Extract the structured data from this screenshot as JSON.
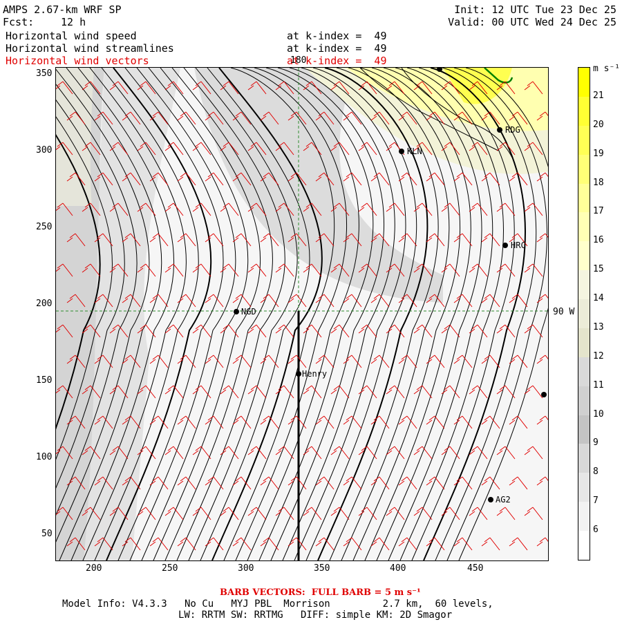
{
  "header": {
    "model_title": "AMPS 2.67-km WRF SP",
    "fcst_label": "Fcst:",
    "fcst_value": "12 h",
    "init": "Init: 12 UTC Tue 23 Dec 25",
    "valid": "Valid: 00 UTC Wed 24 Dec 25"
  },
  "fields": [
    {
      "name": "Horizontal wind speed",
      "level": "at k-index =  49",
      "color": "#000000"
    },
    {
      "name": "Horizontal wind streamlines",
      "level": "at k-index =  49",
      "color": "#000000"
    },
    {
      "name": "Horizontal wind vectors",
      "level": "at k-index =  49",
      "color": "#e00000"
    }
  ],
  "map": {
    "x_ticks": [
      "200",
      "250",
      "300",
      "350",
      "400",
      "450"
    ],
    "y_ticks": [
      "350",
      "300",
      "250",
      "200",
      "150",
      "100",
      "50"
    ],
    "top_grid_label": "180",
    "right_grid_label": "90 W",
    "stations": [
      {
        "label": "RDG"
      },
      {
        "label": "KLN"
      },
      {
        "label": "HRC"
      },
      {
        "label": "NGD"
      },
      {
        "label": "Henry"
      },
      {
        "label": "AG2"
      }
    ]
  },
  "colorbar": {
    "unit": "m s⁻¹",
    "levels": [
      "21",
      "20",
      "19",
      "18",
      "17",
      "16",
      "15",
      "14",
      "13",
      "12",
      "11",
      "10",
      "9",
      "8",
      "7",
      "6"
    ],
    "colors": [
      "#ffff00",
      "#ffff33",
      "#ffff55",
      "#ffff77",
      "#ffff99",
      "#ffffb5",
      "#ffffcc",
      "#f5f5e0",
      "#ececd8",
      "#e4e4cc",
      "#d9d9d9",
      "#d0d0d0",
      "#c4c4c4",
      "#d8d8d8",
      "#e6e6e6",
      "#f2f2f2",
      "#ffffff"
    ]
  },
  "footer": {
    "barb_note": "BARB VECTORS:  FULL BARB = 5 m s⁻¹",
    "model_info": "Model Info: V4.3.3   No Cu   MYJ PBL  Morrison         2.7 km,  60 levels,",
    "physics": "LW: RRTM SW: RRTMG   DIFF: simple KM: 2D Smagor"
  }
}
